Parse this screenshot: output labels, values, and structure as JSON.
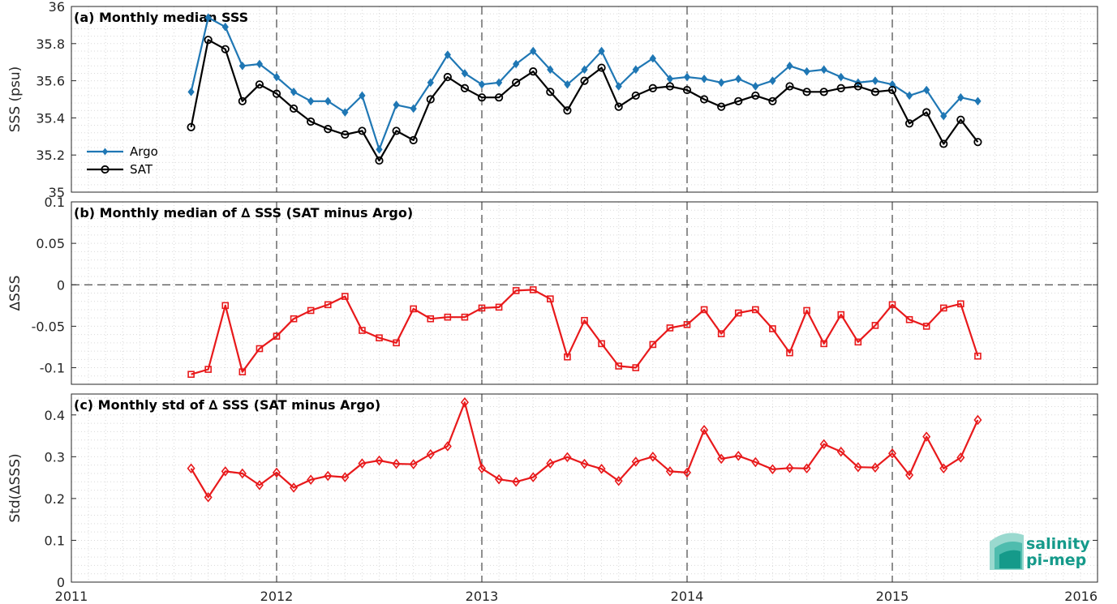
{
  "colors": {
    "argo": "#1f77b4",
    "sat": "#000000",
    "delta": "#e8191b",
    "logo": "#159a8a"
  },
  "logo": {
    "line1": "salinity",
    "line2": "pi-mep"
  },
  "chart_data": [
    {
      "type": "line",
      "title": "(a) Monthly median SSS",
      "xlabel": "",
      "ylabel": "SSS (psu)",
      "xlim": [
        2011,
        2016
      ],
      "ylim": [
        35,
        36
      ],
      "yticks": [
        "35",
        "35.2",
        "35.4",
        "35.6",
        "35.8",
        "36"
      ],
      "xticks": [
        "2011",
        "2012",
        "2013",
        "2014",
        "2015",
        "2016"
      ],
      "grid": "dotted",
      "year_dividers": "dashed",
      "legend": "left",
      "x_start": "2011-08",
      "x_step": "monthly",
      "series": [
        {
          "name": "Argo",
          "marker": "filled-diamond",
          "values": [
            35.54,
            35.94,
            35.89,
            35.68,
            35.69,
            35.62,
            35.54,
            35.49,
            35.49,
            35.43,
            35.52,
            35.23,
            35.47,
            35.45,
            35.59,
            35.74,
            35.64,
            35.58,
            35.59,
            35.69,
            35.76,
            35.66,
            35.58,
            35.66,
            35.76,
            35.57,
            35.66,
            35.72,
            35.61,
            35.62,
            35.61,
            35.59,
            35.61,
            35.57,
            35.6,
            35.68,
            35.65,
            35.66,
            35.62,
            35.59,
            35.6,
            35.58,
            35.52,
            35.55,
            35.41,
            35.51,
            35.49
          ]
        },
        {
          "name": "SAT",
          "marker": "open-circle",
          "values": [
            35.35,
            35.82,
            35.77,
            35.49,
            35.58,
            35.53,
            35.45,
            35.38,
            35.34,
            35.31,
            35.33,
            35.17,
            35.33,
            35.28,
            35.5,
            35.62,
            35.56,
            35.51,
            35.51,
            35.59,
            35.65,
            35.54,
            35.44,
            35.6,
            35.67,
            35.46,
            35.52,
            35.56,
            35.57,
            35.55,
            35.5,
            35.46,
            35.49,
            35.52,
            35.49,
            35.57,
            35.54,
            35.54,
            35.56,
            35.57,
            35.54,
            35.55,
            35.37,
            35.43,
            35.26,
            35.39,
            35.27
          ]
        }
      ]
    },
    {
      "type": "line",
      "title": "(b) Monthly median of ∆ SSS (SAT minus Argo)",
      "xlabel": "",
      "ylabel": "∆SSS",
      "xlim": [
        2011,
        2016
      ],
      "ylim": [
        -0.12,
        0.1
      ],
      "yticks": [
        "-0.1",
        "-0.05",
        "0",
        "0.05",
        "0.1"
      ],
      "xticks": [
        "2011",
        "2012",
        "2013",
        "2014",
        "2015",
        "2016"
      ],
      "grid": "dotted",
      "zero_line": "dashed",
      "x_start": "2011-08",
      "x_step": "monthly",
      "series": [
        {
          "name": "",
          "marker": "open-square",
          "values": [
            -0.108,
            -0.102,
            -0.025,
            -0.105,
            -0.077,
            -0.062,
            -0.041,
            -0.031,
            -0.024,
            -0.014,
            -0.055,
            -0.064,
            -0.07,
            -0.029,
            -0.041,
            -0.039,
            -0.039,
            -0.028,
            -0.027,
            -0.007,
            -0.006,
            -0.017,
            -0.087,
            -0.043,
            -0.071,
            -0.098,
            -0.1,
            -0.072,
            -0.052,
            -0.048,
            -0.03,
            -0.059,
            -0.034,
            -0.03,
            -0.053,
            -0.082,
            -0.031,
            -0.071,
            -0.036,
            -0.069,
            -0.049,
            -0.024,
            -0.042,
            -0.05,
            -0.028,
            -0.023,
            -0.086
          ]
        }
      ]
    },
    {
      "type": "line",
      "title": "(c) Monthly std of ∆ SSS (SAT minus Argo)",
      "xlabel": "",
      "ylabel": "Std(∆SSS)",
      "xlim": [
        2011,
        2016
      ],
      "ylim": [
        0,
        0.45
      ],
      "yticks": [
        "0",
        "0.1",
        "0.2",
        "0.3",
        "0.4"
      ],
      "xticks": [
        "2011",
        "2012",
        "2013",
        "2014",
        "2015",
        "2016"
      ],
      "grid": "dotted",
      "x_start": "2011-08",
      "x_step": "monthly",
      "series": [
        {
          "name": "",
          "marker": "open-diamond",
          "values": [
            0.272,
            0.203,
            0.265,
            0.26,
            0.232,
            0.262,
            0.226,
            0.245,
            0.254,
            0.251,
            0.284,
            0.291,
            0.283,
            0.282,
            0.306,
            0.325,
            0.43,
            0.272,
            0.246,
            0.24,
            0.251,
            0.284,
            0.299,
            0.283,
            0.271,
            0.242,
            0.288,
            0.3,
            0.265,
            0.262,
            0.364,
            0.295,
            0.302,
            0.287,
            0.27,
            0.273,
            0.272,
            0.33,
            0.312,
            0.275,
            0.274,
            0.308,
            0.256,
            0.348,
            0.272,
            0.298,
            0.388
          ]
        }
      ]
    }
  ]
}
